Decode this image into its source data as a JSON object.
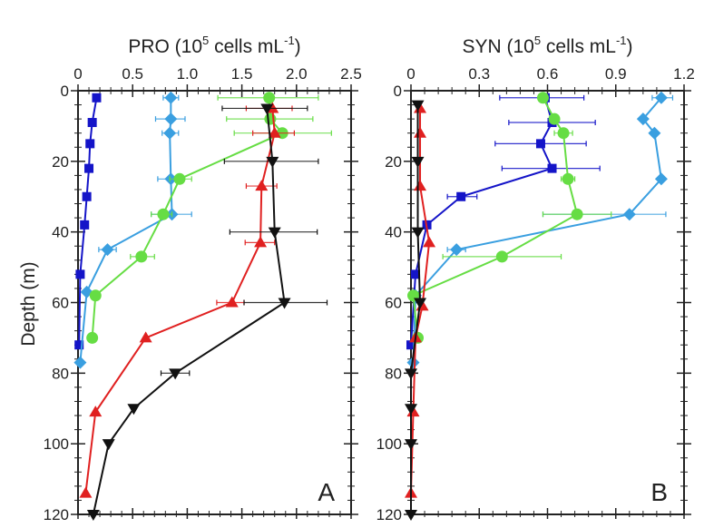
{
  "chart_data": [
    {
      "type": "line",
      "panel_letter": "A",
      "title": {
        "base": "PRO (10",
        "exp": "5",
        "unit": " cells mL",
        "unit_exp": "-1",
        "close": ")"
      },
      "ylabel": "Depth (m)",
      "xlim": [
        0,
        2.5
      ],
      "ylim": [
        0,
        120
      ],
      "y_inverted": true,
      "x_axis_position": "top",
      "xticks": [
        "0",
        "0.5",
        "1.0",
        "1.5",
        "2.0",
        "2.5"
      ],
      "xtick_values": [
        0,
        0.5,
        1.0,
        1.5,
        2.0,
        2.5
      ],
      "yticks": [
        "0",
        "20",
        "40",
        "60",
        "80",
        "100",
        "120"
      ],
      "ytick_values": [
        0,
        20,
        40,
        60,
        80,
        100,
        120
      ],
      "series": [
        {
          "marker": "square",
          "color": "#1414c8",
          "points": [
            [
              0.17,
              2
            ],
            [
              0.13,
              9
            ],
            [
              0.11,
              15
            ],
            [
              0.1,
              22
            ],
            [
              0.08,
              30
            ],
            [
              0.06,
              38
            ],
            [
              0.02,
              52
            ],
            [
              0.01,
              72
            ]
          ],
          "errors": [
            [
              0.14,
              0.2,
              2
            ]
          ]
        },
        {
          "marker": "diamond",
          "color": "#3a9fe0",
          "points": [
            [
              0.85,
              2
            ],
            [
              0.85,
              8
            ],
            [
              0.84,
              12
            ],
            [
              0.85,
              25
            ],
            [
              0.86,
              35
            ],
            [
              0.27,
              45
            ],
            [
              0.08,
              57
            ],
            [
              0.02,
              77
            ]
          ],
          "errors": [
            [
              0.78,
              0.92,
              2
            ],
            [
              0.71,
              0.98,
              8
            ],
            [
              0.77,
              0.92,
              12
            ],
            [
              0.73,
              0.97,
              25
            ],
            [
              0.67,
              1.04,
              35
            ],
            [
              0.19,
              0.35,
              45
            ]
          ]
        },
        {
          "marker": "circle",
          "color": "#66dd44",
          "points": [
            [
              1.75,
              2
            ],
            [
              1.76,
              8
            ],
            [
              1.87,
              12
            ],
            [
              0.93,
              25
            ],
            [
              0.78,
              35
            ],
            [
              0.58,
              47
            ],
            [
              0.16,
              58
            ],
            [
              0.13,
              70
            ]
          ],
          "errors": [
            [
              1.28,
              2.2,
              2
            ],
            [
              1.36,
              2.15,
              8
            ],
            [
              1.43,
              2.32,
              12
            ],
            [
              0.84,
              1.04,
              25
            ],
            [
              0.67,
              0.86,
              35
            ],
            [
              0.48,
              0.7,
              47
            ]
          ]
        },
        {
          "marker": "triangle-up",
          "color": "#e02020",
          "points": [
            [
              1.78,
              5
            ],
            [
              1.8,
              12
            ],
            [
              1.68,
              27
            ],
            [
              1.67,
              43
            ],
            [
              1.41,
              60
            ],
            [
              0.62,
              70
            ],
            [
              0.16,
              91
            ],
            [
              0.07,
              114
            ]
          ],
          "errors": [
            [
              1.54,
              1.96,
              5
            ],
            [
              1.6,
              1.98,
              12
            ],
            [
              1.54,
              1.82,
              27
            ],
            [
              1.53,
              1.8,
              43
            ],
            [
              1.27,
              1.52,
              60
            ]
          ]
        },
        {
          "marker": "triangle-down",
          "color": "#111111",
          "points": [
            [
              1.73,
              5
            ],
            [
              1.78,
              20
            ],
            [
              1.8,
              40
            ],
            [
              1.89,
              60
            ],
            [
              0.89,
              80
            ],
            [
              0.51,
              90
            ],
            [
              0.28,
              100
            ],
            [
              0.14,
              120
            ]
          ],
          "errors": [
            [
              1.32,
              2.1,
              5
            ],
            [
              1.34,
              2.2,
              20
            ],
            [
              1.39,
              2.19,
              40
            ],
            [
              1.52,
              2.28,
              60
            ],
            [
              0.76,
              1.02,
              80
            ]
          ]
        }
      ]
    },
    {
      "type": "line",
      "panel_letter": "B",
      "title": {
        "base": "SYN (10",
        "exp": "5",
        "unit": " cells mL",
        "unit_exp": "-1",
        "close": ")"
      },
      "xlim": [
        0,
        1.2
      ],
      "ylim": [
        0,
        120
      ],
      "y_inverted": true,
      "x_axis_position": "top",
      "xticks": [
        "0",
        "0.3",
        "0.6",
        "0.9",
        "1.2"
      ],
      "xtick_values": [
        0,
        0.3,
        0.6,
        0.9,
        1.2
      ],
      "yticks": [
        "0",
        "20",
        "40",
        "60",
        "80",
        "100",
        "120"
      ],
      "ytick_values": [
        0,
        20,
        40,
        60,
        80,
        100,
        120
      ],
      "series": [
        {
          "marker": "square",
          "color": "#1414c8",
          "points": [
            [
              0.59,
              2
            ],
            [
              0.62,
              9
            ],
            [
              0.57,
              15
            ],
            [
              0.62,
              22
            ],
            [
              0.22,
              30
            ],
            [
              0.07,
              38
            ],
            [
              0.02,
              52
            ],
            [
              0.0,
              72
            ]
          ],
          "errors": [
            [
              0.39,
              0.76,
              2
            ],
            [
              0.43,
              0.81,
              9
            ],
            [
              0.37,
              0.77,
              15
            ],
            [
              0.4,
              0.83,
              22
            ],
            [
              0.16,
              0.29,
              30
            ]
          ]
        },
        {
          "marker": "diamond",
          "color": "#3a9fe0",
          "points": [
            [
              1.1,
              2
            ],
            [
              1.02,
              8
            ],
            [
              1.07,
              12
            ],
            [
              1.1,
              25
            ],
            [
              0.96,
              35
            ],
            [
              0.2,
              45
            ],
            [
              0.02,
              58
            ],
            [
              0.01,
              77
            ]
          ],
          "errors": [
            [
              1.06,
              1.15,
              2
            ],
            [
              0.58,
              1.12,
              35
            ],
            [
              0.16,
              0.24,
              45
            ]
          ]
        },
        {
          "marker": "circle",
          "color": "#66dd44",
          "points": [
            [
              0.58,
              2
            ],
            [
              0.63,
              8
            ],
            [
              0.67,
              12
            ],
            [
              0.69,
              25
            ],
            [
              0.73,
              35
            ],
            [
              0.4,
              47
            ],
            [
              0.01,
              58
            ],
            [
              0.03,
              70
            ]
          ],
          "errors": [
            [
              0.63,
              0.71,
              12
            ],
            [
              0.66,
              0.72,
              25
            ],
            [
              0.58,
              0.88,
              35
            ],
            [
              0.14,
              0.66,
              47
            ]
          ]
        },
        {
          "marker": "triangle-up",
          "color": "#e02020",
          "points": [
            [
              0.04,
              5
            ],
            [
              0.04,
              12
            ],
            [
              0.04,
              27
            ],
            [
              0.08,
              43
            ],
            [
              0.05,
              61
            ],
            [
              0.02,
              70
            ],
            [
              0.01,
              91
            ],
            [
              0.0,
              114
            ]
          ],
          "errors": []
        },
        {
          "marker": "triangle-down",
          "color": "#111111",
          "points": [
            [
              0.03,
              4
            ],
            [
              0.03,
              20
            ],
            [
              0.03,
              40
            ],
            [
              0.04,
              60
            ],
            [
              0.0,
              80
            ],
            [
              0.0,
              90
            ],
            [
              0.0,
              100
            ],
            [
              0.0,
              120
            ]
          ],
          "errors": []
        }
      ]
    }
  ]
}
